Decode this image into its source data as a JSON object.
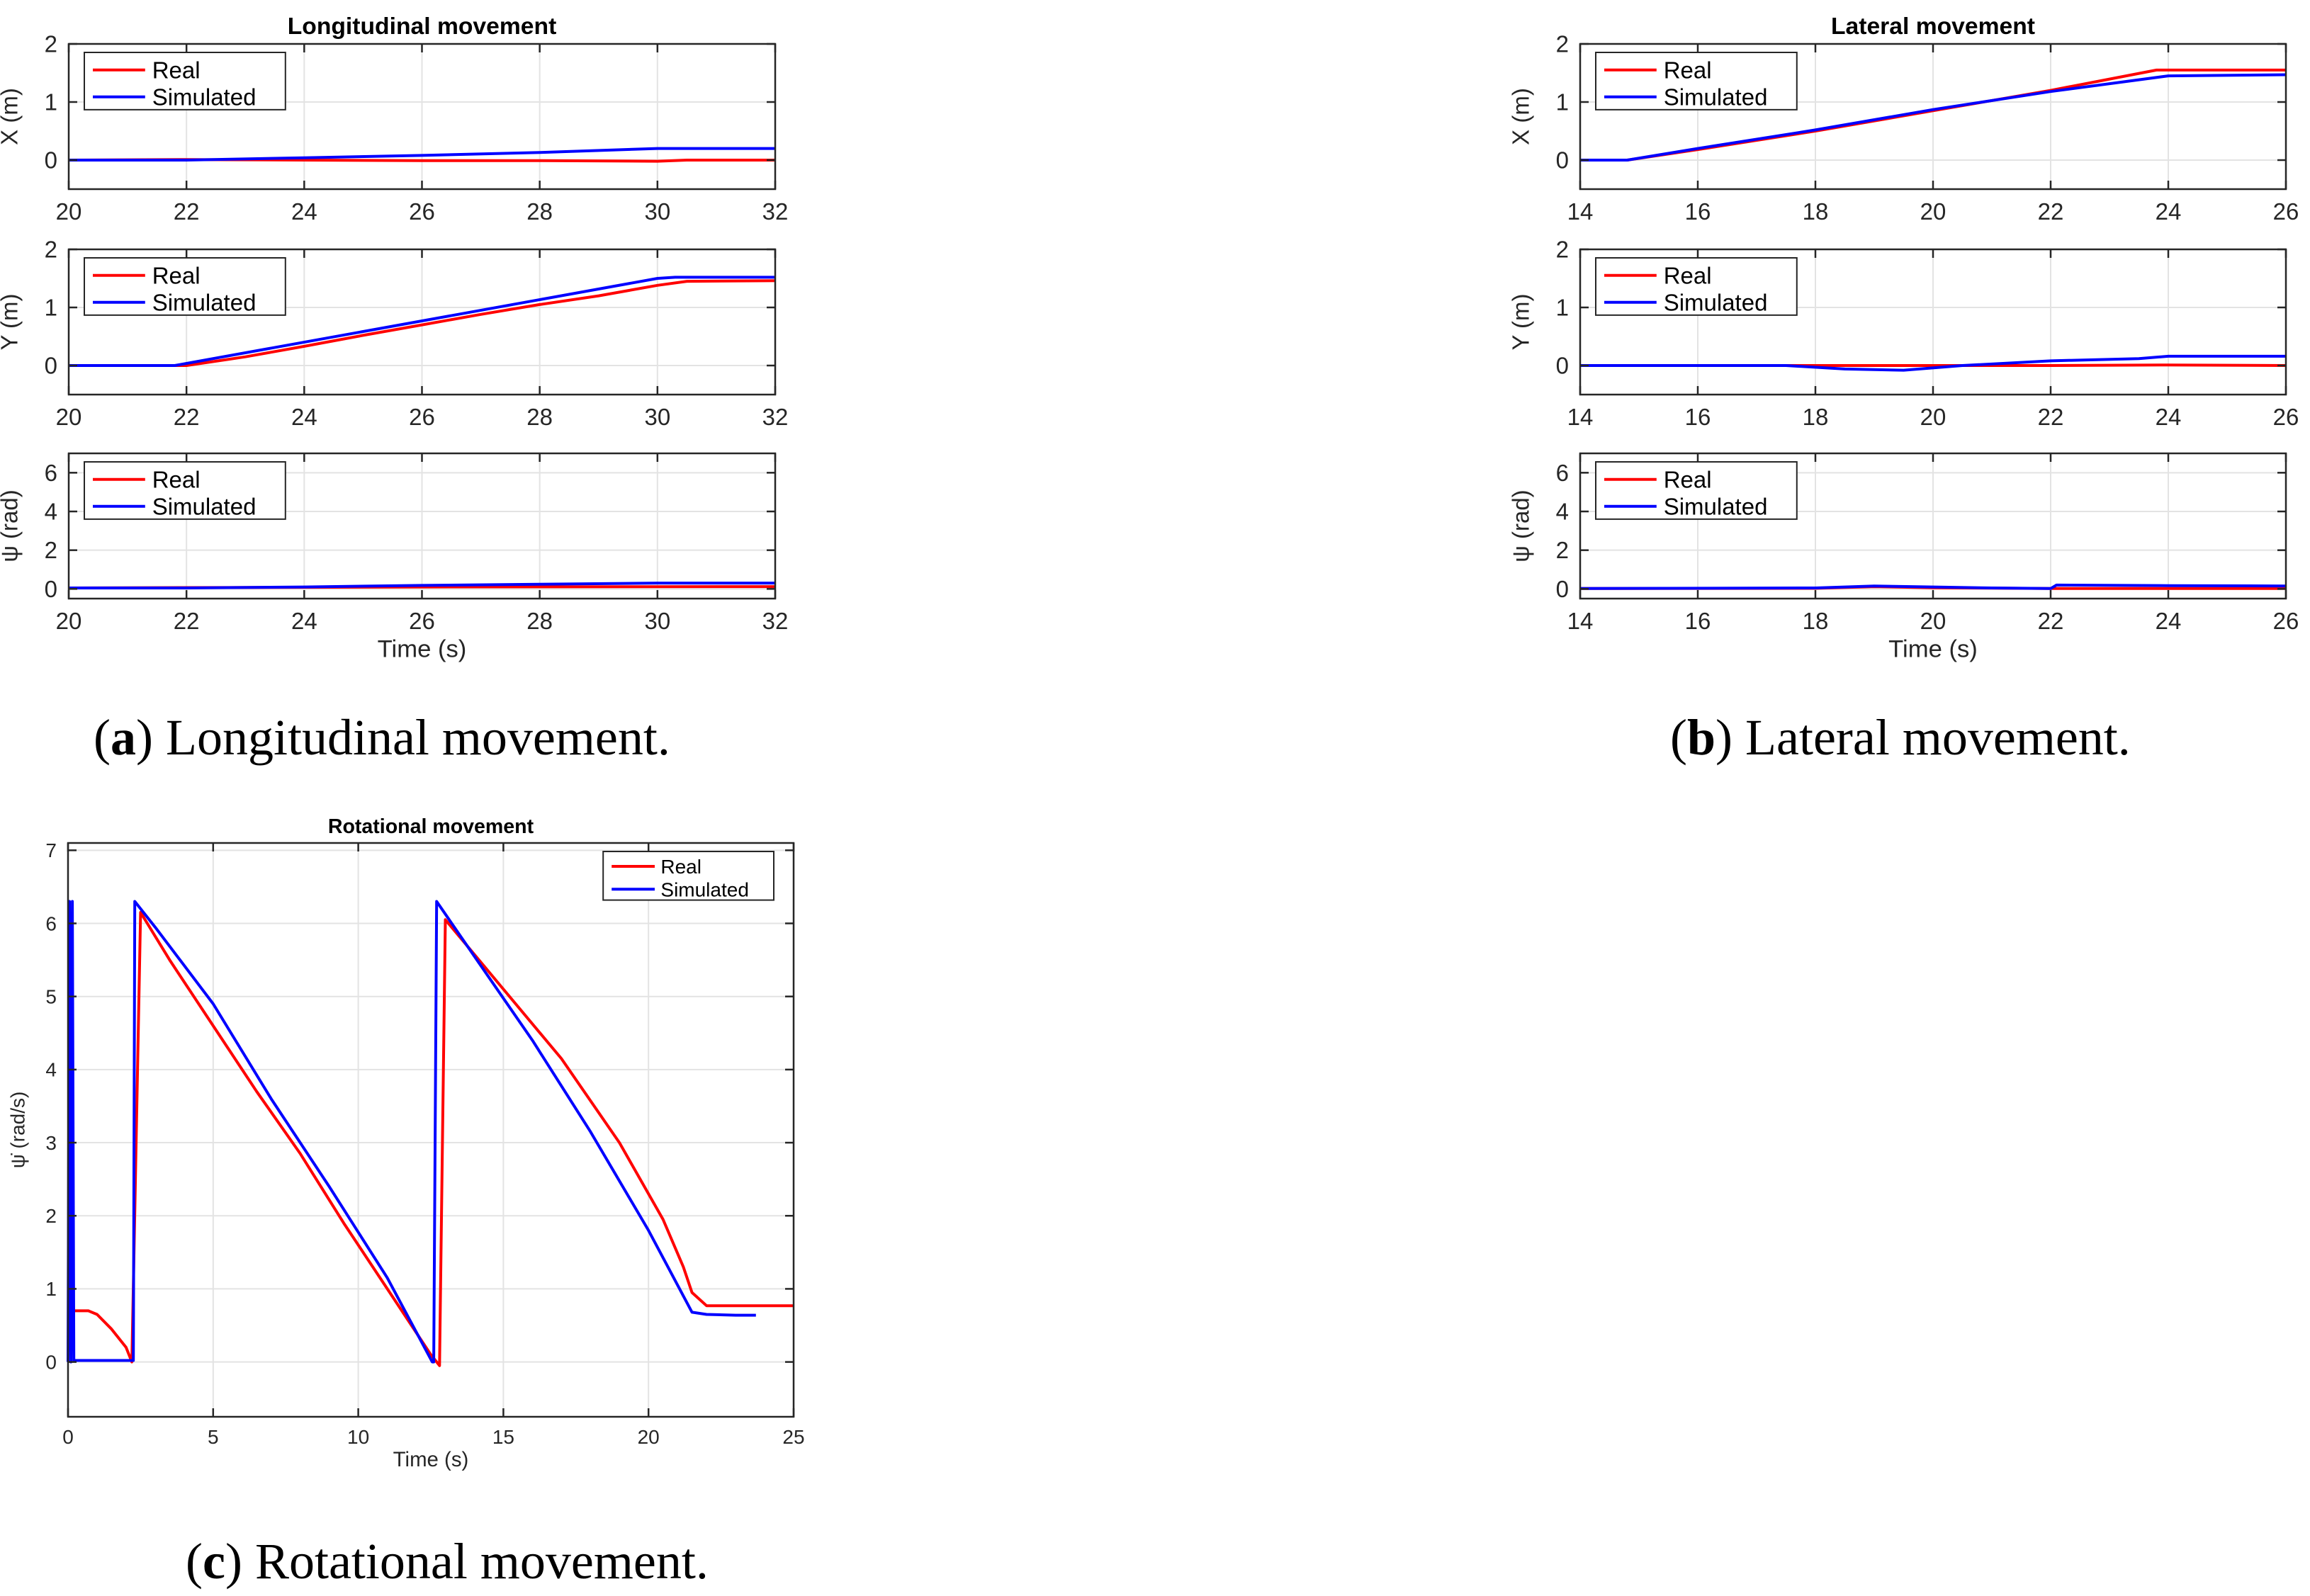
{
  "figure": {
    "captions": [
      {
        "label": "a",
        "text": "Longitudinal movement."
      },
      {
        "label": "b",
        "text": "Lateral movement."
      },
      {
        "label": "c",
        "text": "Rotational movement."
      }
    ]
  },
  "chart_data": [
    {
      "id": "a",
      "type": "line",
      "title": "Longitudinal movement",
      "xlabel": "Time (s)",
      "xlim": [
        20,
        32
      ],
      "xticks": [
        20,
        22,
        24,
        26,
        28,
        30,
        32
      ],
      "grid": true,
      "subplots": [
        {
          "ylabel": "X (m)",
          "ylim": [
            -0.5,
            2
          ],
          "yticks": [
            0,
            1,
            2
          ],
          "legend": [
            "Real",
            "Simulated"
          ],
          "legend_location": "top-left",
          "series": [
            {
              "name": "Real",
              "color": "#ff0000",
              "x": [
                20,
                22,
                24,
                26,
                28,
                30,
                30.5,
                32
              ],
              "y": [
                0,
                0.01,
                0.0,
                -0.01,
                -0.01,
                -0.02,
                0.0,
                0.0
              ]
            },
            {
              "name": "Simulated",
              "color": "#0000ff",
              "x": [
                20,
                22,
                24,
                26,
                28,
                30,
                32
              ],
              "y": [
                0,
                0.0,
                0.04,
                0.08,
                0.13,
                0.2,
                0.2
              ]
            }
          ]
        },
        {
          "ylabel": "Y (m)",
          "ylim": [
            -0.5,
            2
          ],
          "yticks": [
            0,
            1,
            2
          ],
          "legend": [
            "Real",
            "Simulated"
          ],
          "legend_location": "top-left",
          "series": [
            {
              "name": "Real",
              "color": "#ff0000",
              "x": [
                20,
                22,
                23,
                24,
                25,
                26,
                27,
                28,
                29,
                30,
                30.5,
                32
              ],
              "y": [
                0,
                0,
                0.15,
                0.33,
                0.52,
                0.7,
                0.88,
                1.05,
                1.2,
                1.38,
                1.45,
                1.46
              ]
            },
            {
              "name": "Simulated",
              "color": "#0000ff",
              "x": [
                20,
                21.8,
                30,
                30.3,
                32
              ],
              "y": [
                0,
                0,
                1.5,
                1.52,
                1.52
              ]
            }
          ]
        },
        {
          "ylabel": "ψ (rad)",
          "ylim": [
            -0.5,
            7
          ],
          "yticks": [
            0,
            2,
            4,
            6
          ],
          "legend": [
            "Real",
            "Simulated"
          ],
          "legend_location": "top-left",
          "series": [
            {
              "name": "Real",
              "color": "#ff0000",
              "x": [
                20,
                26,
                32
              ],
              "y": [
                0.05,
                0.1,
                0.12
              ]
            },
            {
              "name": "Simulated",
              "color": "#0000ff",
              "x": [
                20,
                22,
                24,
                26,
                28,
                30,
                32
              ],
              "y": [
                0.05,
                0.05,
                0.1,
                0.18,
                0.24,
                0.3,
                0.3
              ]
            }
          ]
        }
      ]
    },
    {
      "id": "b",
      "type": "line",
      "title": "Lateral movement",
      "xlabel": "Time (s)",
      "xlim": [
        14,
        26
      ],
      "xticks": [
        14,
        16,
        18,
        20,
        22,
        24,
        26
      ],
      "grid": true,
      "subplots": [
        {
          "ylabel": "X (m)",
          "ylim": [
            -0.5,
            2
          ],
          "yticks": [
            0,
            1,
            2
          ],
          "legend": [
            "Real",
            "Simulated"
          ],
          "legend_location": "top-left",
          "series": [
            {
              "name": "Real",
              "color": "#ff0000",
              "x": [
                14,
                14.8,
                16,
                18,
                20,
                22,
                23.8,
                26
              ],
              "y": [
                0,
                0,
                0.18,
                0.5,
                0.85,
                1.2,
                1.55,
                1.55
              ]
            },
            {
              "name": "Simulated",
              "color": "#0000ff",
              "x": [
                14,
                14.8,
                16,
                18,
                20,
                22,
                24,
                26
              ],
              "y": [
                0,
                0,
                0.2,
                0.52,
                0.87,
                1.18,
                1.45,
                1.47
              ]
            }
          ]
        },
        {
          "ylabel": "Y (m)",
          "ylim": [
            -0.5,
            2
          ],
          "yticks": [
            0,
            1,
            2
          ],
          "legend": [
            "Real",
            "Simulated"
          ],
          "legend_location": "top-left",
          "series": [
            {
              "name": "Real",
              "color": "#ff0000",
              "x": [
                14,
                18,
                20,
                22,
                24,
                26
              ],
              "y": [
                0,
                0,
                0,
                0,
                0.01,
                0.0
              ]
            },
            {
              "name": "Simulated",
              "color": "#0000ff",
              "x": [
                14,
                17.5,
                18.5,
                19.5,
                20.5,
                22,
                23.5,
                24,
                26
              ],
              "y": [
                0,
                0,
                -0.06,
                -0.08,
                0,
                0.08,
                0.12,
                0.16,
                0.16
              ]
            }
          ]
        },
        {
          "ylabel": "ψ (rad)",
          "ylim": [
            -0.5,
            7
          ],
          "yticks": [
            0,
            2,
            4,
            6
          ],
          "legend": [
            "Real",
            "Simulated"
          ],
          "legend_location": "top-left",
          "series": [
            {
              "name": "Real",
              "color": "#ff0000",
              "x": [
                14,
                18,
                19,
                20,
                22,
                26
              ],
              "y": [
                0.02,
                0.03,
                0.12,
                0.06,
                0.02,
                0.02
              ]
            },
            {
              "name": "Simulated",
              "color": "#0000ff",
              "x": [
                14,
                18,
                19,
                20,
                21,
                22,
                22.1,
                24,
                26
              ],
              "y": [
                0.02,
                0.05,
                0.15,
                0.1,
                0.05,
                0.02,
                0.2,
                0.17,
                0.15
              ]
            }
          ]
        }
      ]
    },
    {
      "id": "c",
      "type": "line",
      "title": "Rotational movement",
      "xlabel": "Time (s)",
      "ylabel": "ψ̇ (rad/s)",
      "xlim": [
        0,
        25
      ],
      "ylim": [
        -0.75,
        7.1
      ],
      "xticks": [
        0,
        5,
        10,
        15,
        20,
        25
      ],
      "yticks": [
        0,
        1,
        2,
        3,
        4,
        5,
        6,
        7
      ],
      "grid": true,
      "legend": [
        "Real",
        "Simulated"
      ],
      "legend_location": "top-right",
      "series": [
        {
          "name": "Real",
          "color": "#ff0000",
          "x": [
            0,
            0.7,
            1.0,
            1.5,
            2.0,
            2.2,
            2.5,
            3.5,
            5,
            6.5,
            8,
            9.5,
            11,
            12.5,
            12.8,
            13.0,
            15,
            17,
            19,
            20.5,
            21.2,
            21.5,
            22,
            25
          ],
          "y": [
            0.7,
            0.7,
            0.65,
            0.45,
            0.2,
            0.0,
            6.15,
            5.5,
            4.6,
            3.7,
            2.85,
            1.9,
            1.0,
            0.1,
            -0.05,
            6.05,
            5.1,
            4.15,
            3.0,
            1.95,
            1.3,
            0.95,
            0.77,
            0.77
          ]
        },
        {
          "name": "Simulated",
          "color": "#0000ff",
          "x": [
            0,
            0.05,
            0.1,
            0.15,
            0.2,
            2.2,
            2.25,
            2.3,
            3,
            5,
            7,
            9,
            11,
            12.55,
            12.6,
            12.7,
            14,
            16,
            18,
            20,
            21.5,
            22,
            23,
            23.7
          ],
          "y": [
            0,
            6.3,
            0,
            6.3,
            0.02,
            0.02,
            0.02,
            6.3,
            5.95,
            4.9,
            3.6,
            2.4,
            1.15,
            0.0,
            0.0,
            6.3,
            5.55,
            4.4,
            3.15,
            1.8,
            0.68,
            0.65,
            0.64,
            0.64
          ]
        }
      ]
    }
  ]
}
